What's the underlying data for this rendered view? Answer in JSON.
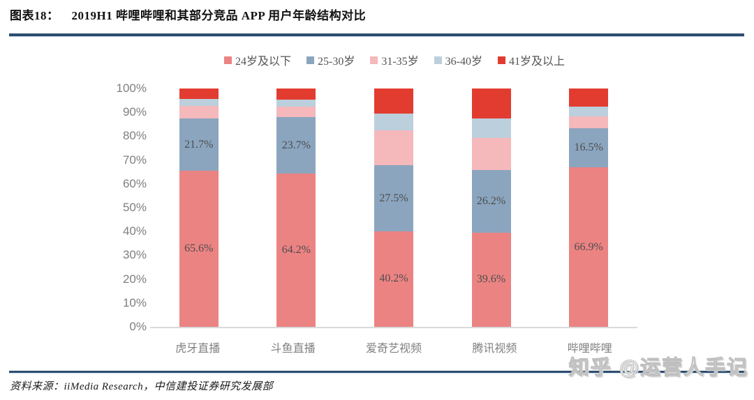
{
  "header": {
    "tag": "图表18：",
    "title": "2019H1 哔哩哔哩和其部分竞品 APP 用户年龄结构对比"
  },
  "footer": {
    "source": "资料来源：iiMedia Research，中信建投证券研究发展部",
    "watermark": "知乎 @运营人手记"
  },
  "colors": {
    "rule": "#2e4d6e",
    "baseline": "#d9d9d9",
    "axis_text": "#7f7f7f",
    "bar_label_text": "#4d4d4d",
    "legend_text": "#555555"
  },
  "chart_data": {
    "type": "bar",
    "stacked": true,
    "title": "2019H1 哔哩哔哩和其部分竞品 APP 用户年龄结构对比",
    "xlabel": "",
    "ylabel": "",
    "ylim": [
      0,
      100
    ],
    "grid": false,
    "legend_position": "top",
    "y_ticks": [
      "100%",
      "90%",
      "80%",
      "70%",
      "60%",
      "50%",
      "40%",
      "30%",
      "20%",
      "10%",
      "0%"
    ],
    "categories": [
      "虎牙直播",
      "斗鱼直播",
      "爱奇艺视频",
      "腾讯视频",
      "哔哩哔哩"
    ],
    "series": [
      {
        "name": "24岁及以下",
        "color": "#ec8383",
        "values": [
          65.6,
          64.2,
          40.2,
          39.6,
          66.9
        ],
        "labels": [
          "65.6%",
          "64.2%",
          "40.2%",
          "39.6%",
          "66.9%"
        ]
      },
      {
        "name": "25-30岁",
        "color": "#8ba5bf",
        "values": [
          21.7,
          23.7,
          27.5,
          26.2,
          16.5
        ],
        "labels": [
          "21.7%",
          "23.7%",
          "27.5%",
          "26.2%",
          "16.5%"
        ]
      },
      {
        "name": "31-35岁",
        "color": "#f5b8bb",
        "values": [
          5.4,
          4.5,
          14.8,
          13.4,
          4.9
        ],
        "labels": null
      },
      {
        "name": "36-40岁",
        "color": "#bccfdc",
        "values": [
          2.9,
          2.9,
          7.0,
          8.2,
          4.1
        ],
        "labels": null
      },
      {
        "name": "41岁及以上",
        "color": "#e23c30",
        "values": [
          4.4,
          4.7,
          10.5,
          12.6,
          7.6
        ],
        "labels": null
      }
    ]
  }
}
